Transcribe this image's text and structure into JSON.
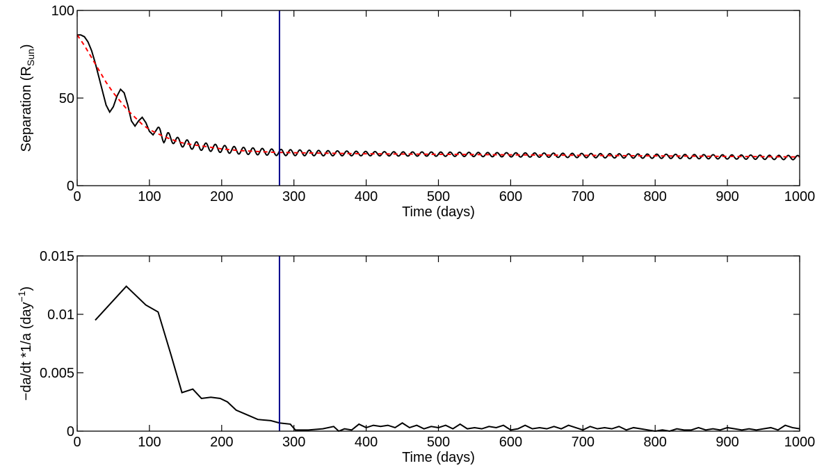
{
  "chart_data": [
    {
      "type": "line",
      "xlabel": "Time (days)",
      "ylabel": {
        "main": "Separation (R",
        "sub": "Sun",
        "close": ")"
      },
      "xlim": [
        0,
        1000
      ],
      "ylim": [
        0,
        100
      ],
      "xticks": [
        "0",
        "100",
        "200",
        "300",
        "400",
        "500",
        "600",
        "700",
        "800",
        "900",
        "1000"
      ],
      "yticks": [
        "0",
        "50",
        "100"
      ],
      "xtick_values": [
        0,
        100,
        200,
        300,
        400,
        500,
        600,
        700,
        800,
        900,
        1000
      ],
      "ytick_values": [
        0,
        50,
        100
      ],
      "grid": false,
      "vline_x": 280,
      "colors": {
        "separation": "#000000",
        "trend": "#ff0000",
        "vline": "#00008b"
      },
      "series": [
        {
          "style": "solid",
          "color": "#000000",
          "x": [
            0,
            5,
            10,
            15,
            20,
            25,
            30,
            35,
            40,
            45,
            50,
            55,
            60,
            65,
            70,
            75,
            80,
            85,
            90,
            95,
            100,
            105,
            110,
            115,
            120,
            125,
            130,
            140,
            150,
            160,
            170,
            180,
            190,
            200,
            225,
            250,
            275,
            300,
            350,
            400,
            450,
            500,
            550,
            600,
            650,
            700,
            750,
            800,
            850,
            900,
            950,
            1000
          ],
          "y": [
            86,
            86,
            85,
            82,
            77,
            70,
            62,
            54,
            46,
            42,
            45,
            51,
            55,
            53,
            46,
            37,
            34,
            37,
            39,
            36,
            31,
            29,
            32,
            30,
            27,
            28,
            27,
            25,
            24,
            23,
            22.5,
            22,
            21.5,
            21,
            20,
            19.5,
            19,
            18.8,
            18.5,
            18.3,
            18.1,
            18,
            17.8,
            17.6,
            17.4,
            17.2,
            17,
            16.8,
            16.6,
            16.4,
            16.2,
            16
          ],
          "oscillation": {
            "period_days": 13,
            "amplitude_early": 2.5,
            "amplitude_late": 1.2,
            "start_x": 110
          }
        },
        {
          "style": "dashed",
          "color": "#ff0000",
          "x": [
            0,
            10,
            20,
            30,
            40,
            50,
            60,
            70,
            80,
            90,
            100,
            110,
            120,
            130,
            140,
            150,
            175,
            200,
            225,
            250,
            275,
            300,
            350,
            400,
            500,
            600,
            700,
            800,
            900,
            1000
          ],
          "y": [
            86,
            80,
            73,
            66,
            59,
            53,
            48,
            43,
            39,
            35,
            32,
            30,
            28,
            26.5,
            25,
            24,
            22.5,
            21,
            20,
            19.5,
            19,
            18.8,
            18.5,
            18.2,
            17.9,
            17.6,
            17.3,
            17,
            16.7,
            16.4
          ]
        }
      ]
    },
    {
      "type": "line",
      "xlabel": "Time (days)",
      "ylabel": {
        "main": "−da/dt *1/a (day",
        "sup": "−1",
        "close": ")"
      },
      "xlim": [
        0,
        1000
      ],
      "ylim": [
        0,
        0.015
      ],
      "xticks": [
        "0",
        "100",
        "200",
        "300",
        "400",
        "500",
        "600",
        "700",
        "800",
        "900",
        "1000"
      ],
      "yticks": [
        "0",
        "0.005",
        "0.01",
        "0.015"
      ],
      "xtick_values": [
        0,
        100,
        200,
        300,
        400,
        500,
        600,
        700,
        800,
        900,
        1000
      ],
      "ytick_values": [
        0,
        0.005,
        0.01,
        0.015
      ],
      "grid": false,
      "vline_x": 280,
      "colors": {
        "rate": "#000000",
        "vline": "#00008b"
      },
      "series": [
        {
          "style": "solid",
          "color": "#000000",
          "x": [
            25,
            68,
            95,
            112,
            130,
            145,
            160,
            172,
            185,
            198,
            208,
            220,
            235,
            250,
            268,
            280,
            295,
            302,
            320,
            340,
            355,
            362,
            370,
            380,
            390,
            400,
            410,
            420,
            430,
            440,
            450,
            460,
            470,
            480,
            490,
            500,
            510,
            520,
            530,
            540,
            550,
            560,
            570,
            580,
            590,
            600,
            610,
            620,
            630,
            640,
            650,
            660,
            670,
            680,
            690,
            700,
            710,
            720,
            730,
            740,
            750,
            760,
            770,
            780,
            790,
            800,
            810,
            820,
            830,
            840,
            850,
            860,
            870,
            880,
            890,
            900,
            910,
            920,
            930,
            940,
            950,
            960,
            970,
            980,
            990,
            1000
          ],
          "y": [
            0.0095,
            0.0124,
            0.0108,
            0.0102,
            0.0065,
            0.0033,
            0.0036,
            0.0028,
            0.0029,
            0.0028,
            0.0025,
            0.0018,
            0.0014,
            0.001,
            0.0009,
            0.0007,
            0.0006,
            0.0001,
            0.0001,
            0.0002,
            0.0004,
            0.0,
            0.0002,
            0.0001,
            0.0006,
            0.0003,
            0.0005,
            0.0004,
            0.0005,
            0.0003,
            0.0007,
            0.0003,
            0.0005,
            0.0002,
            0.0004,
            0.0003,
            0.0005,
            0.0002,
            0.0006,
            0.0002,
            0.0003,
            0.0002,
            0.0004,
            0.0003,
            0.0005,
            0.0001,
            0.0002,
            0.0005,
            0.0002,
            0.0003,
            0.0002,
            0.0004,
            0.0002,
            0.0005,
            0.0003,
            0.0001,
            0.0004,
            0.0002,
            0.0003,
            0.0002,
            0.0004,
            0.0001,
            0.0003,
            0.0002,
            0.0001,
            0.0,
            0.0001,
            0.0,
            0.0002,
            0.0001,
            0.0001,
            0.0003,
            0.0001,
            0.0002,
            0.0001,
            0.0003,
            0.0002,
            0.0001,
            0.0002,
            0.0001,
            0.0002,
            0.0003,
            0.0001,
            0.0005,
            0.0003,
            0.0002
          ]
        }
      ]
    }
  ]
}
